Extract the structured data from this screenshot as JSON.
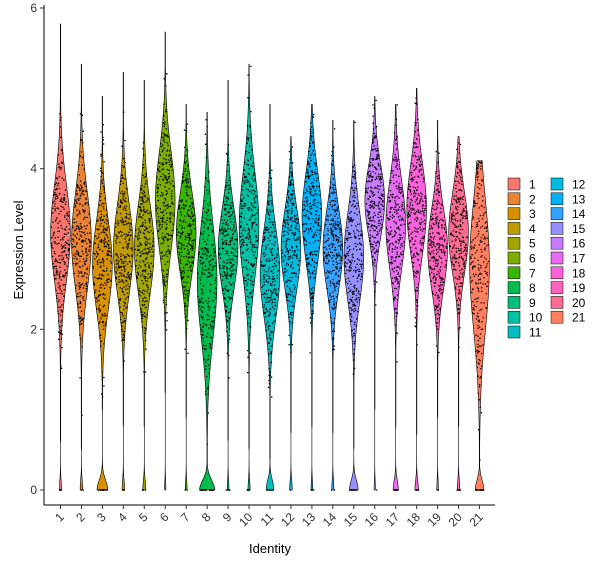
{
  "chart_data": {
    "type": "violin",
    "title": "",
    "xlabel": "Identity",
    "ylabel": "Expression Level",
    "ylim": [
      0,
      6
    ],
    "y_ticks": [
      0,
      2,
      4,
      6
    ],
    "grid": false,
    "legend_position": "right",
    "categories": [
      "1",
      "2",
      "3",
      "4",
      "5",
      "6",
      "7",
      "8",
      "9",
      "10",
      "11",
      "12",
      "13",
      "14",
      "15",
      "16",
      "17",
      "18",
      "19",
      "20",
      "21"
    ],
    "colors": [
      "#F8766D",
      "#EA8331",
      "#D89000",
      "#C09B00",
      "#A3A500",
      "#7CAE00",
      "#39B600",
      "#00BB4E",
      "#00BF7D",
      "#00C1A3",
      "#00BFC4",
      "#00BAE0",
      "#00B0F6",
      "#35A2FF",
      "#9590FF",
      "#C77CFF",
      "#E76BF3",
      "#FA62DB",
      "#FF62BC",
      "#FF6C91",
      "#FF7F5F"
    ],
    "series": [
      {
        "name": "1",
        "median": 3.2,
        "spread": 0.6,
        "max": 5.8,
        "min_nonzero": 0.6,
        "zero_fraction": 0.05
      },
      {
        "name": "2",
        "median": 3.1,
        "spread": 0.6,
        "max": 5.3,
        "min_nonzero": 0.5,
        "zero_fraction": 0.06
      },
      {
        "name": "3",
        "median": 2.8,
        "spread": 0.55,
        "max": 4.9,
        "min_nonzero": 1.0,
        "zero_fraction": 0.25
      },
      {
        "name": "4",
        "median": 3.0,
        "spread": 0.55,
        "max": 5.2,
        "min_nonzero": 0.8,
        "zero_fraction": 0.06
      },
      {
        "name": "5",
        "median": 3.0,
        "spread": 0.55,
        "max": 5.1,
        "min_nonzero": 0.8,
        "zero_fraction": 0.07
      },
      {
        "name": "6",
        "median": 3.6,
        "spread": 0.6,
        "max": 5.7,
        "min_nonzero": 1.2,
        "zero_fraction": 0.03
      },
      {
        "name": "7",
        "median": 3.2,
        "spread": 0.5,
        "max": 4.8,
        "min_nonzero": 0.9,
        "zero_fraction": 0.04
      },
      {
        "name": "8",
        "median": 2.6,
        "spread": 0.7,
        "max": 4.7,
        "min_nonzero": 0.3,
        "zero_fraction": 0.35
      },
      {
        "name": "9",
        "median": 3.0,
        "spread": 0.5,
        "max": 5.1,
        "min_nonzero": 0.6,
        "zero_fraction": 0.04
      },
      {
        "name": "10",
        "median": 3.3,
        "spread": 0.65,
        "max": 5.3,
        "min_nonzero": 0.5,
        "zero_fraction": 0.05
      },
      {
        "name": "11",
        "median": 2.7,
        "spread": 0.55,
        "max": 4.8,
        "min_nonzero": 0.4,
        "zero_fraction": 0.18
      },
      {
        "name": "12",
        "median": 3.0,
        "spread": 0.5,
        "max": 4.4,
        "min_nonzero": 0.7,
        "zero_fraction": 0.06
      },
      {
        "name": "13",
        "median": 3.4,
        "spread": 0.55,
        "max": 4.8,
        "min_nonzero": 0.8,
        "zero_fraction": 0.04
      },
      {
        "name": "14",
        "median": 3.0,
        "spread": 0.5,
        "max": 4.6,
        "min_nonzero": 0.7,
        "zero_fraction": 0.05
      },
      {
        "name": "15",
        "median": 2.9,
        "spread": 0.55,
        "max": 4.6,
        "min_nonzero": 0.5,
        "zero_fraction": 0.2
      },
      {
        "name": "16",
        "median": 3.6,
        "spread": 0.45,
        "max": 4.9,
        "min_nonzero": 1.0,
        "zero_fraction": 0.03
      },
      {
        "name": "17",
        "median": 3.3,
        "spread": 0.55,
        "max": 4.8,
        "min_nonzero": 0.8,
        "zero_fraction": 0.12
      },
      {
        "name": "18",
        "median": 3.5,
        "spread": 0.55,
        "max": 5.0,
        "min_nonzero": 0.7,
        "zero_fraction": 0.08
      },
      {
        "name": "19",
        "median": 3.0,
        "spread": 0.5,
        "max": 4.6,
        "min_nonzero": 0.9,
        "zero_fraction": 0.04
      },
      {
        "name": "20",
        "median": 3.2,
        "spread": 0.5,
        "max": 4.4,
        "min_nonzero": 0.8,
        "zero_fraction": 0.06
      },
      {
        "name": "21",
        "median": 2.8,
        "spread": 0.8,
        "max": 4.1,
        "min_nonzero": 0.0,
        "zero_fraction": 0.2
      }
    ]
  }
}
